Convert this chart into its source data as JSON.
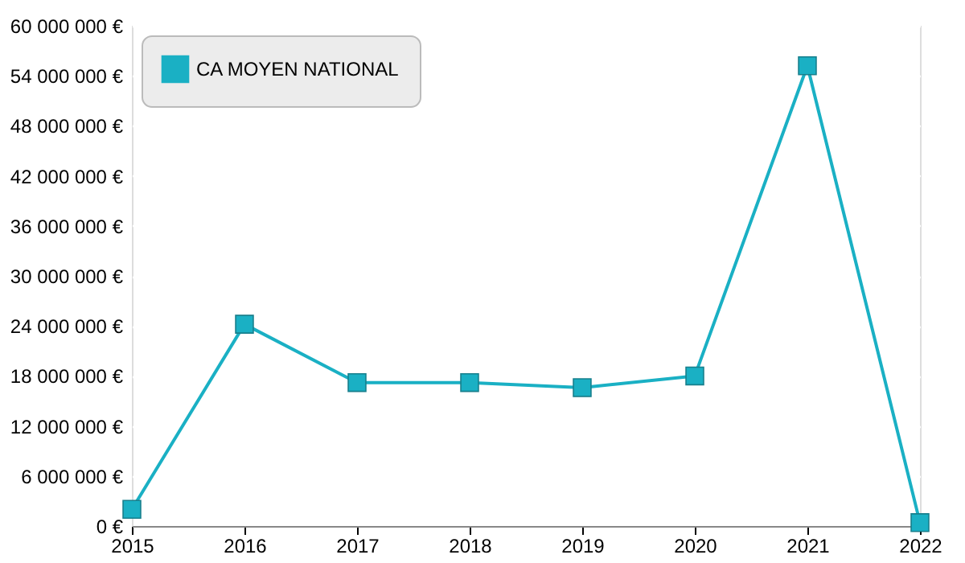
{
  "chart_data": {
    "type": "line",
    "x": [
      2015,
      2016,
      2017,
      2018,
      2019,
      2020,
      2021,
      2022
    ],
    "series": [
      {
        "name": "CA MOYEN NATIONAL",
        "color": "#1ab0c4",
        "values": [
          2000000,
          24200000,
          17200000,
          17200000,
          16600000,
          18000000,
          55200000,
          400000
        ]
      }
    ],
    "xlim": [
      2015,
      2022
    ],
    "xticks": [
      2015,
      2016,
      2017,
      2018,
      2019,
      2020,
      2021,
      2022
    ],
    "ylim": [
      0,
      60000000
    ],
    "yticks": [
      {
        "value": 0,
        "label": "0 €"
      },
      {
        "value": 6000000,
        "label": "6 000 000 €"
      },
      {
        "value": 12000000,
        "label": "12 000 000 €"
      },
      {
        "value": 18000000,
        "label": "18 000 000 €"
      },
      {
        "value": 24000000,
        "label": "24 000 000 €"
      },
      {
        "value": 30000000,
        "label": "30 000 000 €"
      },
      {
        "value": 36000000,
        "label": "36 000 000 €"
      },
      {
        "value": 42000000,
        "label": "42 000 000 €"
      },
      {
        "value": 48000000,
        "label": "48 000 000 €"
      },
      {
        "value": 54000000,
        "label": "54 000 000 €"
      },
      {
        "value": 60000000,
        "label": "60 000 000 €"
      }
    ],
    "grid": "y",
    "legend": "top left",
    "marker": "square",
    "line_style": "solid"
  }
}
